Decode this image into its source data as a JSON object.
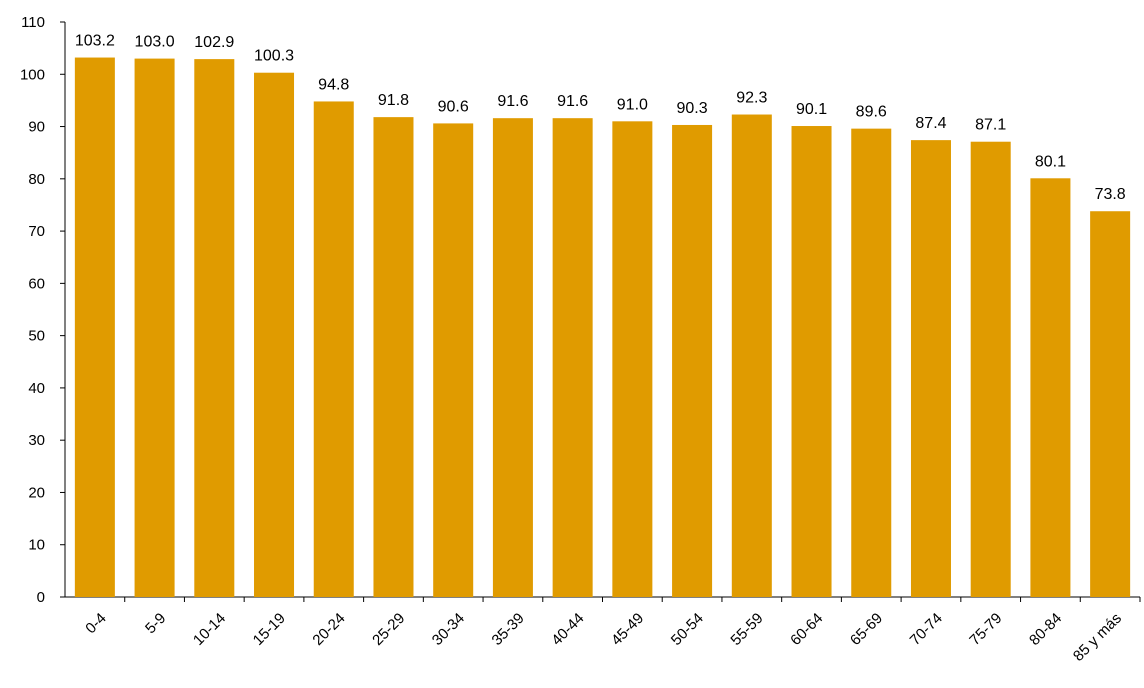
{
  "chart_data": {
    "type": "bar",
    "categories": [
      "0-4",
      "5-9",
      "10-14",
      "15-19",
      "20-24",
      "25-29",
      "30-34",
      "35-39",
      "40-44",
      "45-49",
      "50-54",
      "55-59",
      "60-64",
      "65-69",
      "70-74",
      "75-79",
      "80-84",
      "85 y más"
    ],
    "values": [
      103.2,
      103.0,
      102.9,
      100.3,
      94.8,
      91.8,
      90.6,
      91.6,
      91.6,
      91.0,
      90.3,
      92.3,
      90.1,
      89.6,
      87.4,
      87.1,
      80.1,
      73.8
    ],
    "value_labels": [
      "103.2",
      "103.0",
      "102.9",
      "100.3",
      "94.8",
      "91.8",
      "90.6",
      "91.6",
      "91.6",
      "91.0",
      "90.3",
      "92.3",
      "90.1",
      "89.6",
      "87.4",
      "87.1",
      "80.1",
      "73.8"
    ],
    "y_ticks": [
      "0",
      "10",
      "20",
      "30",
      "40",
      "50",
      "60",
      "70",
      "80",
      "90",
      "100",
      "110"
    ],
    "ylim": [
      0,
      110
    ],
    "title": "",
    "xlabel": "",
    "ylabel": "",
    "grid": false,
    "bar_color": "#E09B00",
    "axis_color": "#000000"
  }
}
